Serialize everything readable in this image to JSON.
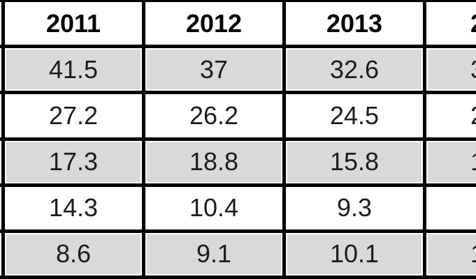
{
  "chart_data": {
    "type": "table",
    "categories": [
      "2011",
      "2012",
      "2013"
    ],
    "rows": [
      [
        41.5,
        37,
        32.6
      ],
      [
        27.2,
        26.2,
        24.5
      ],
      [
        17.3,
        18.8,
        15.8
      ],
      [
        14.3,
        10.4,
        9.3
      ],
      [
        8.6,
        9.1,
        10.1
      ]
    ],
    "note": "Table cropped in screenshot: a row-label column is clipped at the left edge (only fill sliver visible, no text) and one more year column is clipped at the right edge (header fragment '2', value fragments '3','2','1','','1')."
  },
  "table": {
    "header": {
      "cells": [
        "",
        "2011",
        "2012",
        "2013",
        "2"
      ]
    },
    "rows": [
      {
        "shaded": true,
        "cells": [
          "",
          "41.5",
          "37",
          "32.6",
          "3"
        ]
      },
      {
        "shaded": false,
        "cells": [
          "",
          "27.2",
          "26.2",
          "24.5",
          "2"
        ]
      },
      {
        "shaded": true,
        "cells": [
          "",
          "17.3",
          "18.8",
          "15.8",
          "1"
        ]
      },
      {
        "shaded": false,
        "cells": [
          "",
          "14.3",
          "10.4",
          "9.3",
          ""
        ]
      },
      {
        "shaded": true,
        "cells": [
          "",
          "8.6",
          "9.1",
          "10.1",
          "1"
        ]
      }
    ],
    "colors": {
      "shaded_row_bg": "#d9d9d9",
      "row_bg": "#ffffff",
      "gridline": "#000000",
      "header_text": "#000000",
      "cell_text": "#1c1c1c"
    }
  }
}
